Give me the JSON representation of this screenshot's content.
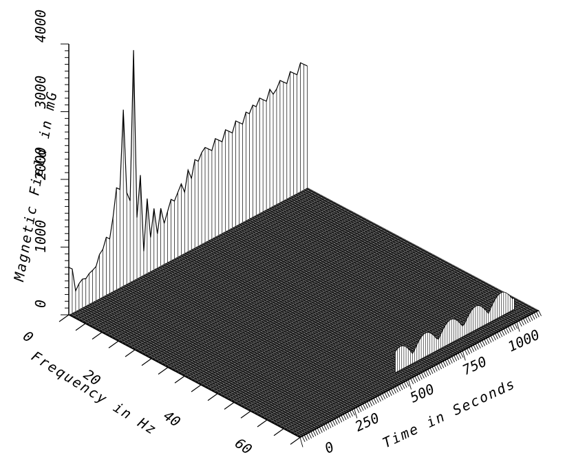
{
  "chart_data": {
    "type": "surface-waterfall",
    "title": "",
    "zlabel": "Magnetic Field in mG",
    "xlabel": "Frequency in Hz",
    "ylabel": "Time in Seconds",
    "z_ticks": [
      "0",
      "1000",
      "2000",
      "3000",
      "4000"
    ],
    "x_ticks": [
      "0",
      "20",
      "40",
      "60"
    ],
    "y_ticks": [
      "0",
      "250",
      "500",
      "750",
      "1000"
    ],
    "zlim": [
      0,
      4000
    ],
    "xlim": [
      0,
      70
    ],
    "ylim": [
      0,
      1100
    ],
    "back_profile": {
      "description_free": true,
      "x": [
        0,
        1,
        2,
        3,
        4,
        5,
        6,
        7,
        8,
        9,
        10,
        11,
        12,
        13,
        14,
        15,
        16,
        17,
        18,
        19,
        20,
        21,
        22,
        23,
        24,
        25,
        26,
        27,
        28,
        29,
        30,
        31,
        32,
        33,
        34,
        35,
        36,
        37,
        38,
        39,
        40,
        41,
        42,
        43,
        44,
        45,
        46,
        47,
        48,
        49,
        50,
        51,
        52,
        53,
        54,
        55,
        56,
        57,
        58,
        59,
        60,
        61,
        62,
        63,
        64,
        65,
        66,
        67,
        68,
        69,
        70
      ],
      "z": [
        700,
        650,
        300,
        380,
        420,
        400,
        450,
        470,
        500,
        650,
        700,
        850,
        800,
        1100,
        1500,
        1450,
        2600,
        1350,
        1200,
        3400,
        900,
        1500,
        350,
        1100,
        500,
        900,
        500,
        850,
        600,
        750,
        900,
        850,
        950,
        1050,
        900,
        1200,
        1050,
        1300,
        1250,
        1350,
        1400,
        1350,
        1300,
        1450,
        1400,
        1350,
        1500,
        1450,
        1400,
        1550,
        1500,
        1450,
        1600,
        1550,
        1650,
        1600,
        1700,
        1650,
        1600,
        1750,
        1650,
        1700,
        1800,
        1750,
        1700,
        1850,
        1800,
        1750,
        1900,
        1850,
        1800
      ]
    },
    "ridge_time_band": {
      "time_range": [
        500,
        1050
      ],
      "frequency": 66,
      "z_peak": 350
    }
  }
}
